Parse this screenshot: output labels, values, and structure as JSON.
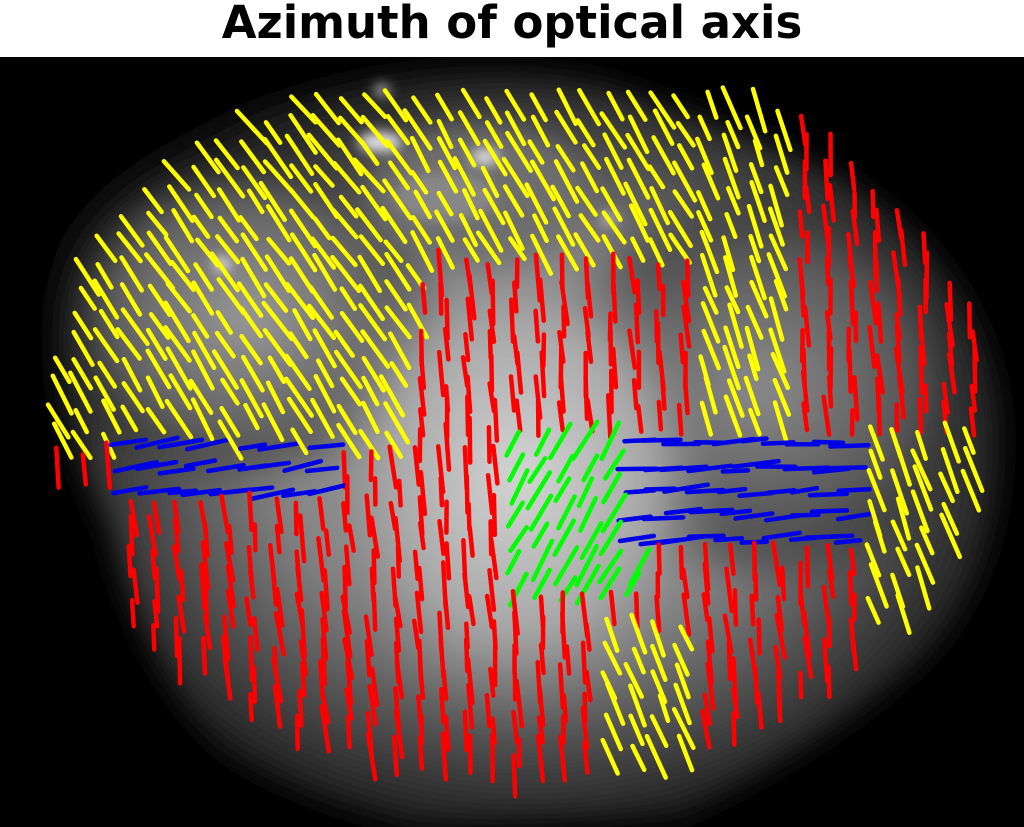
{
  "figure": {
    "title": "Azimuth of optical axis"
  },
  "legend_colors": {
    "near_vertical": "#ff0000",
    "diagonal_steep": "#ffff00",
    "diagonal_shallow": "#00ffff",
    "near_horizontal": "#0000e6",
    "anti_diagonal_steep": "#00ff00",
    "anti_diagonal_shallow": "#008000"
  },
  "image": {
    "description_none": "",
    "background_color": "#000000"
  }
}
